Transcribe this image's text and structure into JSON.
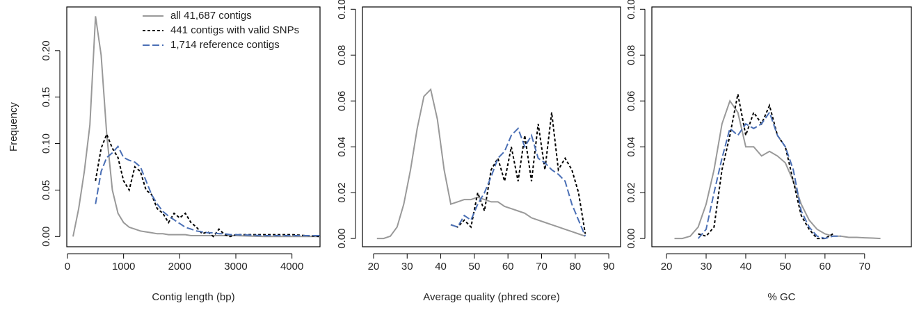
{
  "chart_data": [
    {
      "type": "line",
      "x_label": "Contig length (bp)",
      "y_label": "Frequency",
      "x": [
        100,
        200,
        300,
        400,
        500,
        600,
        700,
        800,
        900,
        1000,
        1100,
        1200,
        1300,
        1400,
        1500,
        1600,
        1700,
        1800,
        1900,
        2000,
        2100,
        2200,
        2300,
        2400,
        2500,
        2600,
        2700,
        2800,
        2900,
        3000,
        3500,
        4000,
        4500
      ],
      "series": [
        {
          "name": "all 41,687 contigs",
          "color": "#999999",
          "linestyle": "solid",
          "values": [
            0,
            0.03,
            0.07,
            0.12,
            0.237,
            0.195,
            0.11,
            0.05,
            0.025,
            0.015,
            0.01,
            0.008,
            0.006,
            0.005,
            0.004,
            0.003,
            0.003,
            0.002,
            0.002,
            0.002,
            0.002,
            0.001,
            0.001,
            0.001,
            0.001,
            0.001,
            0.001,
            0.001,
            0.001,
            0.001,
            0,
            0,
            0
          ]
        },
        {
          "name": "441 contigs with valid SNPs",
          "color": "#000000",
          "linestyle": "dotted",
          "values": [
            null,
            null,
            null,
            null,
            0.06,
            0.095,
            0.11,
            0.095,
            0.085,
            0.06,
            0.05,
            0.075,
            0.07,
            0.05,
            0.045,
            0.03,
            0.025,
            0.015,
            0.025,
            0.02,
            0.025,
            0.015,
            0.01,
            0.003,
            0.005,
            0,
            0.008,
            0.002,
            0,
            0.002,
            0.002,
            0.002,
            0
          ]
        },
        {
          "name": "1,714 reference contigs",
          "color": "#4a6fb5",
          "linestyle": "dashed",
          "values": [
            null,
            null,
            null,
            null,
            0.035,
            0.07,
            0.085,
            0.09,
            0.097,
            0.085,
            0.082,
            0.08,
            0.075,
            0.06,
            0.045,
            0.035,
            0.027,
            0.022,
            0.018,
            0.014,
            0.01,
            0.008,
            0.006,
            0.005,
            0.004,
            0.004,
            0.003,
            0.003,
            0.002,
            0.002,
            0.001,
            0.001,
            0.001
          ]
        }
      ],
      "xlim": [
        -12,
        4500
      ],
      "xticks": [
        0,
        1000,
        2000,
        3000,
        4000
      ],
      "ylim": [
        -0.011,
        0.247
      ],
      "yticks": [
        {
          "value": 0,
          "label": "0.00"
        },
        {
          "value": 0.05,
          "label": "0.05"
        },
        {
          "value": 0.1,
          "label": "0.10"
        },
        {
          "value": 0.15,
          "label": "0.15"
        },
        {
          "value": 0.2,
          "label": "0.20"
        }
      ],
      "legend": "top-right"
    },
    {
      "type": "line",
      "x_label": "Average quality (phred score)",
      "x": [
        21,
        23,
        25,
        27,
        29,
        31,
        33,
        35,
        37,
        39,
        41,
        43,
        45,
        47,
        49,
        51,
        53,
        55,
        57,
        59,
        61,
        63,
        65,
        67,
        69,
        71,
        73,
        75,
        77,
        79,
        81,
        83
      ],
      "series": [
        {
          "color": "#999999",
          "linestyle": "solid",
          "values": [
            0,
            0,
            0.001,
            0.005,
            0.015,
            0.03,
            0.048,
            0.062,
            0.065,
            0.052,
            0.03,
            0.015,
            0.016,
            0.017,
            0.017,
            0.018,
            0.017,
            0.016,
            0.016,
            0.014,
            0.013,
            0.012,
            0.011,
            0.009,
            0.008,
            0.007,
            0.006,
            0.005,
            0.004,
            0.003,
            0.002,
            0.001
          ]
        },
        {
          "color": "#000000",
          "linestyle": "dotted",
          "values": [
            null,
            null,
            null,
            null,
            null,
            null,
            null,
            null,
            null,
            null,
            null,
            0.006,
            0.005,
            0.008,
            0.005,
            0.02,
            0.012,
            0.03,
            0.035,
            0.025,
            0.04,
            0.025,
            0.045,
            0.025,
            0.05,
            0.03,
            0.055,
            0.03,
            0.035,
            0.03,
            0.02,
            0.002
          ]
        },
        {
          "color": "#4a6fb5",
          "linestyle": "dashed",
          "values": [
            null,
            null,
            null,
            null,
            null,
            null,
            null,
            null,
            null,
            null,
            null,
            0.006,
            0.005,
            0.01,
            0.008,
            0.015,
            0.02,
            0.027,
            0.035,
            0.038,
            0.045,
            0.048,
            0.04,
            0.045,
            0.035,
            0.033,
            0.03,
            0.028,
            0.025,
            0.015,
            0.008,
            0.001
          ]
        }
      ],
      "xlim": [
        16.7,
        93.5
      ],
      "xticks": [
        20,
        30,
        40,
        50,
        60,
        70,
        80,
        90
      ],
      "ylim": [
        -0.0036,
        0.101
      ],
      "yticks": [
        {
          "value": 0,
          "label": "0.00"
        },
        {
          "value": 0.02,
          "label": "0.02"
        },
        {
          "value": 0.04,
          "label": "0.04"
        },
        {
          "value": 0.06,
          "label": "0.06"
        },
        {
          "value": 0.08,
          "label": "0.08"
        },
        {
          "value": 0.1,
          "label": "0.10"
        }
      ]
    },
    {
      "type": "line",
      "x_label": "% GC",
      "x": [
        22,
        24,
        26,
        28,
        30,
        32,
        34,
        36,
        38,
        40,
        42,
        44,
        46,
        48,
        50,
        52,
        54,
        56,
        58,
        60,
        62,
        64,
        66,
        68,
        70,
        72,
        74
      ],
      "series": [
        {
          "color": "#999999",
          "linestyle": "solid",
          "values": [
            0,
            0,
            0.001,
            0.005,
            0.015,
            0.03,
            0.05,
            0.06,
            0.055,
            0.04,
            0.04,
            0.036,
            0.038,
            0.036,
            0.033,
            0.025,
            0.015,
            0.008,
            0.004,
            0.002,
            0.001,
            0.001,
            0.0005,
            0.0005,
            0.0003,
            0.0002,
            0
          ]
        },
        {
          "color": "#000000",
          "linestyle": "dotted",
          "values": [
            null,
            null,
            null,
            0.002,
            0.001,
            0.005,
            0.03,
            0.045,
            0.063,
            0.045,
            0.055,
            0.05,
            0.058,
            0.045,
            0.04,
            0.025,
            0.01,
            0.004,
            0,
            0,
            0.002,
            null,
            null,
            null,
            null,
            null,
            null
          ]
        },
        {
          "color": "#4a6fb5",
          "linestyle": "dashed",
          "values": [
            null,
            null,
            null,
            0,
            0.004,
            0.02,
            0.035,
            0.048,
            0.045,
            0.05,
            0.048,
            0.05,
            0.055,
            0.045,
            0.04,
            0.03,
            0.012,
            0.005,
            0.001,
            0,
            0.001,
            0.001,
            null,
            null,
            null,
            null,
            null
          ]
        }
      ],
      "xlim": [
        16.3,
        81.8
      ],
      "xticks": [
        20,
        30,
        40,
        50,
        60,
        70
      ],
      "ylim": [
        -0.0036,
        0.101
      ],
      "yticks": [
        {
          "value": 0,
          "label": "0.00"
        },
        {
          "value": 0.02,
          "label": "0.02"
        },
        {
          "value": 0.04,
          "label": "0.04"
        },
        {
          "value": 0.06,
          "label": "0.06"
        },
        {
          "value": 0.08,
          "label": "0.08"
        },
        {
          "value": 0.1,
          "label": "0.10"
        }
      ]
    }
  ]
}
